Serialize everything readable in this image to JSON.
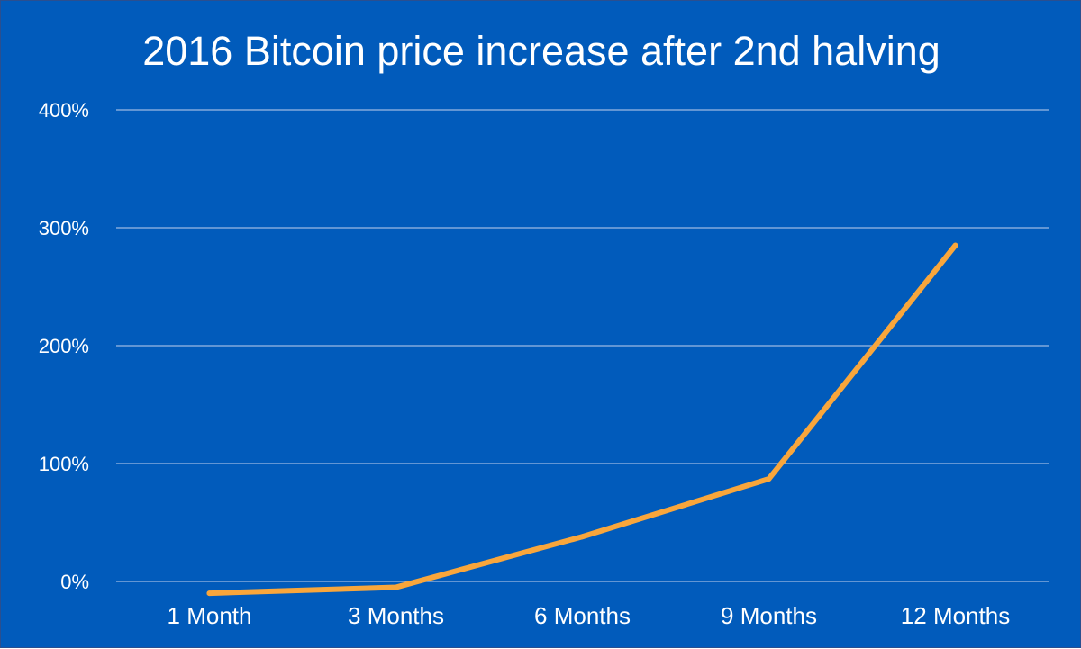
{
  "chart_data": {
    "type": "line",
    "title": "2016 Bitcoin price increase after 2nd halving",
    "categories": [
      "1 Month",
      "3 Months",
      "6 Months",
      "9 Months",
      "12 Months"
    ],
    "series": [
      {
        "values": [
          -10,
          -5,
          38,
          87,
          285
        ],
        "color": "#F9A63B"
      }
    ],
    "ylim": [
      0,
      400
    ],
    "yticks": [
      0,
      100,
      200,
      300,
      400
    ],
    "yticklabels": [
      "0%",
      "100%",
      "200%",
      "300%",
      "400%"
    ],
    "ytick_suffix": "%",
    "grid": true,
    "legend": false,
    "colors": {
      "background": "#015BBB",
      "gridline": "#9CB9E2",
      "text": "#FFFFFF"
    }
  }
}
